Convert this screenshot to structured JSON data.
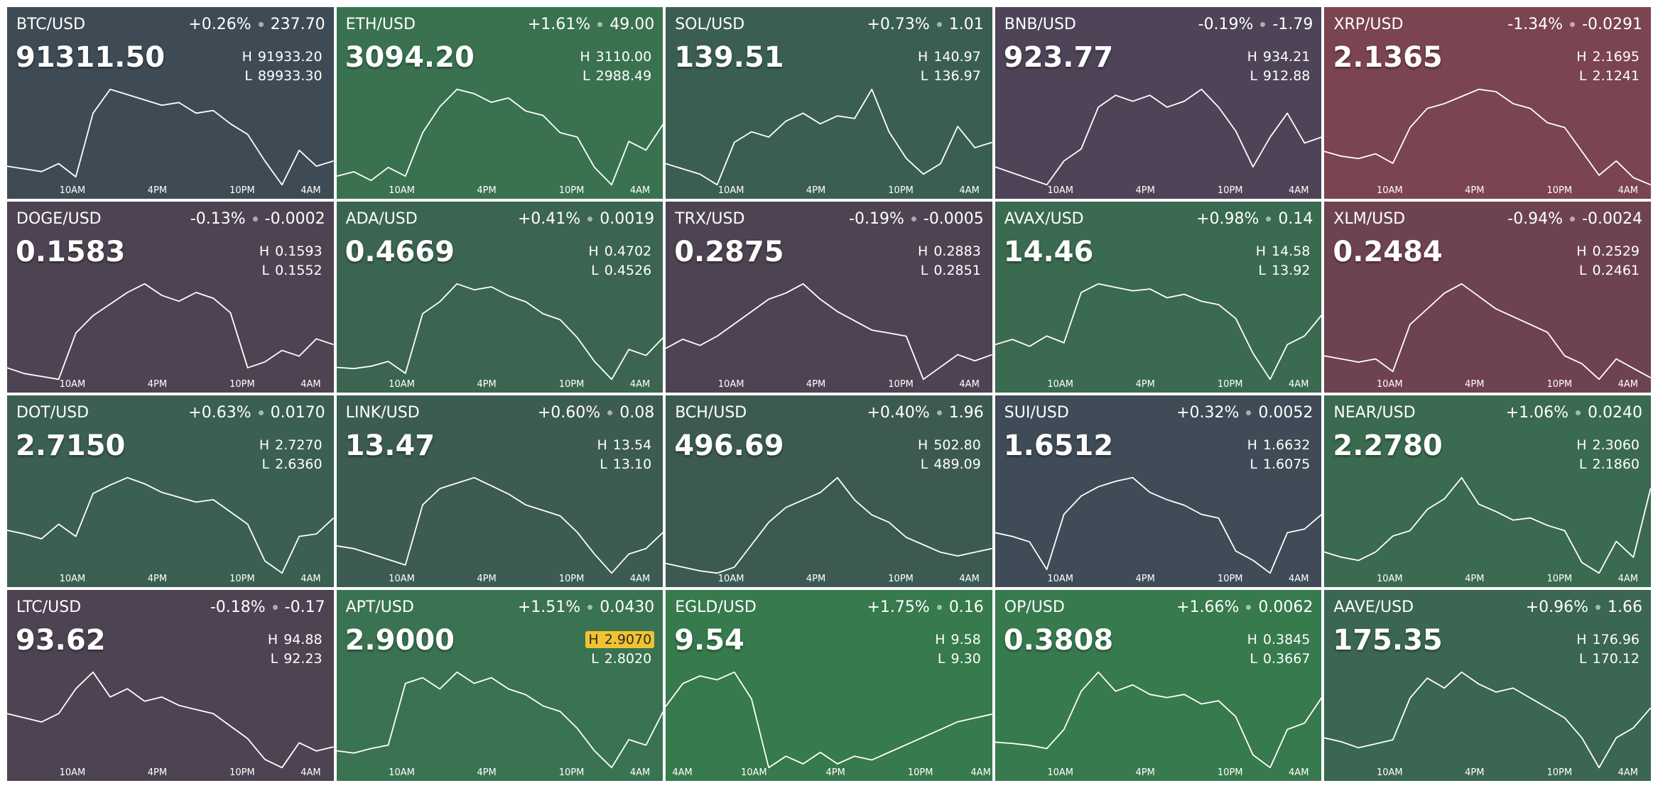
{
  "labels": {
    "high": "H",
    "low": "L"
  },
  "tiles": [
    {
      "pair": "BTC/USD",
      "change_pct": "+0.26%",
      "change": "237.70",
      "price": "91311.50",
      "high": "91933.20",
      "low": "89933.30",
      "color": "#3e4b55",
      "time_labels": [
        "10AM",
        "4PM",
        "10PM",
        "4AM"
      ],
      "spark": [
        90300,
        90250,
        90200,
        90350,
        90100,
        91300,
        91750,
        91650,
        91550,
        91450,
        91500,
        91300,
        91350,
        91100,
        90900,
        90400,
        89950,
        90600,
        90300,
        90400
      ]
    },
    {
      "pair": "ETH/USD",
      "change_pct": "+1.61%",
      "change": "49.00",
      "price": "3094.20",
      "high": "3110.00",
      "low": "2988.49",
      "color": "#3a7250",
      "time_labels": [
        "10AM",
        "4PM",
        "10PM",
        "4AM"
      ],
      "spark": [
        3000,
        3005,
        2995,
        3010,
        3000,
        3050,
        3080,
        3100,
        3095,
        3085,
        3090,
        3075,
        3070,
        3050,
        3045,
        3010,
        2990,
        3040,
        3030,
        3060
      ]
    },
    {
      "pair": "SOL/USD",
      "change_pct": "+0.73%",
      "change": "1.01",
      "price": "139.51",
      "high": "140.97",
      "low": "136.97",
      "color": "#3b5e53",
      "time_labels": [
        "10AM",
        "4PM",
        "10PM",
        "4AM"
      ],
      "spark": [
        137.8,
        137.6,
        137.4,
        137.0,
        138.6,
        139.0,
        138.8,
        139.4,
        139.7,
        139.3,
        139.6,
        139.5,
        140.6,
        139.0,
        138.0,
        137.4,
        137.8,
        139.2,
        138.4,
        138.6
      ]
    },
    {
      "pair": "BNB/USD",
      "change_pct": "-0.19%",
      "change": "-1.79",
      "price": "923.77",
      "high": "934.21",
      "low": "912.88",
      "color": "#4e4357",
      "time_labels": [
        "10AM",
        "4PM",
        "10PM",
        "4AM"
      ],
      "spark": [
        916,
        915,
        914,
        913,
        917,
        919,
        926,
        928,
        927,
        928,
        926,
        927,
        929,
        926,
        922,
        916,
        921,
        925,
        920,
        921
      ]
    },
    {
      "pair": "XRP/USD",
      "change_pct": "-1.34%",
      "change": "-0.0291",
      "price": "2.1365",
      "high": "2.1695",
      "low": "2.1241",
      "color": "#7a4450",
      "time_labels": [
        "10AM",
        "4PM",
        "10PM",
        "4AM"
      ],
      "spark": [
        2.14,
        2.138,
        2.137,
        2.139,
        2.135,
        2.15,
        2.158,
        2.16,
        2.163,
        2.166,
        2.165,
        2.16,
        2.158,
        2.152,
        2.15,
        2.14,
        2.13,
        2.136,
        2.129,
        2.126
      ]
    },
    {
      "pair": "DOGE/USD",
      "change_pct": "-0.13%",
      "change": "-0.0002",
      "price": "0.1583",
      "high": "0.1593",
      "low": "0.1552",
      "color": "#4e4352",
      "time_labels": [
        "10AM",
        "4PM",
        "10PM",
        "4AM"
      ],
      "spark": [
        0.156,
        0.1558,
        0.1557,
        0.1556,
        0.1572,
        0.1578,
        0.1582,
        0.1586,
        0.1589,
        0.1585,
        0.1583,
        0.1586,
        0.1584,
        0.1579,
        0.156,
        0.1562,
        0.1566,
        0.1564,
        0.157,
        0.1568
      ]
    },
    {
      "pair": "ADA/USD",
      "change_pct": "+0.41%",
      "change": "0.0019",
      "price": "0.4669",
      "high": "0.4702",
      "low": "0.4526",
      "color": "#3b6551",
      "time_labels": [
        "10AM",
        "4PM",
        "10PM",
        "4AM"
      ],
      "spark": [
        0.455,
        0.4548,
        0.4552,
        0.456,
        0.454,
        0.464,
        0.466,
        0.469,
        0.468,
        0.4685,
        0.467,
        0.466,
        0.464,
        0.463,
        0.46,
        0.456,
        0.453,
        0.458,
        0.457,
        0.46
      ]
    },
    {
      "pair": "TRX/USD",
      "change_pct": "-0.19%",
      "change": "-0.0005",
      "price": "0.2875",
      "high": "0.2883",
      "low": "0.2851",
      "color": "#4e4352",
      "time_labels": [
        "10AM",
        "4PM",
        "10PM",
        "4AM"
      ],
      "spark": [
        0.2862,
        0.2865,
        0.2863,
        0.2866,
        0.287,
        0.2874,
        0.2878,
        0.288,
        0.2883,
        0.2878,
        0.2874,
        0.2871,
        0.2868,
        0.2867,
        0.2866,
        0.2852,
        0.2856,
        0.286,
        0.2858,
        0.286
      ]
    },
    {
      "pair": "AVAX/USD",
      "change_pct": "+0.98%",
      "change": "0.14",
      "price": "14.46",
      "high": "14.58",
      "low": "13.92",
      "color": "#3a6a4f",
      "time_labels": [
        "10AM",
        "4PM",
        "10PM",
        "4AM"
      ],
      "spark": [
        14.15,
        14.18,
        14.14,
        14.2,
        14.16,
        14.45,
        14.5,
        14.48,
        14.46,
        14.47,
        14.42,
        14.44,
        14.4,
        14.38,
        14.3,
        14.1,
        13.95,
        14.15,
        14.2,
        14.32
      ]
    },
    {
      "pair": "XLM/USD",
      "change_pct": "-0.94%",
      "change": "-0.0024",
      "price": "0.2484",
      "high": "0.2529",
      "low": "0.2461",
      "color": "#6e4350",
      "time_labels": [
        "10AM",
        "4PM",
        "10PM",
        "4AM"
      ],
      "spark": [
        0.248,
        0.2478,
        0.2476,
        0.2478,
        0.247,
        0.25,
        0.251,
        0.252,
        0.2526,
        0.2518,
        0.251,
        0.2505,
        0.25,
        0.2495,
        0.248,
        0.2475,
        0.2465,
        0.2478,
        0.2472,
        0.2466
      ]
    },
    {
      "pair": "DOT/USD",
      "change_pct": "+0.63%",
      "change": "0.0170",
      "price": "2.7150",
      "high": "2.7270",
      "low": "2.6360",
      "color": "#3b5f51",
      "time_labels": [
        "10AM",
        "4PM",
        "10PM",
        "4AM"
      ],
      "spark": [
        2.675,
        2.672,
        2.668,
        2.68,
        2.67,
        2.705,
        2.712,
        2.718,
        2.713,
        2.706,
        2.702,
        2.698,
        2.7,
        2.69,
        2.68,
        2.65,
        2.64,
        2.67,
        2.672,
        2.685
      ]
    },
    {
      "pair": "LINK/USD",
      "change_pct": "+0.60%",
      "change": "0.08",
      "price": "13.47",
      "high": "13.54",
      "low": "13.10",
      "color": "#3c5b52",
      "time_labels": [
        "10AM",
        "4PM",
        "10PM",
        "4AM"
      ],
      "spark": [
        13.25,
        13.24,
        13.22,
        13.2,
        13.18,
        13.4,
        13.46,
        13.48,
        13.5,
        13.47,
        13.44,
        13.4,
        13.38,
        13.36,
        13.3,
        13.22,
        13.15,
        13.22,
        13.24,
        13.3
      ]
    },
    {
      "pair": "BCH/USD",
      "change_pct": "+0.40%",
      "change": "1.96",
      "price": "496.69",
      "high": "502.80",
      "low": "489.09",
      "color": "#3c5a51",
      "time_labels": [
        "10AM",
        "4PM",
        "10PM",
        "4AM"
      ],
      "spark": [
        490.5,
        490.0,
        489.5,
        489.2,
        490.0,
        493,
        496,
        498,
        499,
        500,
        502,
        499,
        497,
        496,
        494,
        493,
        492,
        491.5,
        492,
        492.5
      ]
    },
    {
      "pair": "SUI/USD",
      "change_pct": "+0.32%",
      "change": "0.0052",
      "price": "1.6512",
      "high": "1.6632",
      "low": "1.6075",
      "color": "#3f4b56",
      "time_labels": [
        "10AM",
        "4PM",
        "10PM",
        "4AM"
      ],
      "spark": [
        1.63,
        1.628,
        1.625,
        1.61,
        1.64,
        1.65,
        1.655,
        1.658,
        1.66,
        1.652,
        1.648,
        1.645,
        1.64,
        1.638,
        1.62,
        1.615,
        1.608,
        1.63,
        1.632,
        1.64
      ]
    },
    {
      "pair": "NEAR/USD",
      "change_pct": "+1.06%",
      "change": "0.0240",
      "price": "2.2780",
      "high": "2.3060",
      "low": "2.1860",
      "color": "#3a6a4f",
      "time_labels": [
        "10AM",
        "4PM",
        "10PM",
        "4AM"
      ],
      "spark": [
        2.22,
        2.215,
        2.212,
        2.22,
        2.235,
        2.24,
        2.26,
        2.27,
        2.29,
        2.265,
        2.258,
        2.25,
        2.252,
        2.245,
        2.24,
        2.21,
        2.2,
        2.23,
        2.215,
        2.28
      ]
    },
    {
      "pair": "LTC/USD",
      "change_pct": "-0.18%",
      "change": "-0.17",
      "price": "93.62",
      "high": "94.88",
      "low": "92.23",
      "color": "#4e4352",
      "time_labels": [
        "10AM",
        "4PM",
        "10PM",
        "4AM"
      ],
      "spark": [
        93.6,
        93.5,
        93.4,
        93.6,
        94.2,
        94.6,
        94.0,
        94.2,
        93.9,
        94.0,
        93.8,
        93.7,
        93.6,
        93.3,
        93.0,
        92.5,
        92.3,
        92.9,
        92.7,
        92.8
      ]
    },
    {
      "pair": "APT/USD",
      "change_pct": "+1.51%",
      "change": "0.0430",
      "price": "2.9000",
      "high": "2.9070",
      "low": "2.8020",
      "color": "#3a7351",
      "highlight": "high",
      "time_labels": [
        "10AM",
        "4PM",
        "10PM",
        "4AM"
      ],
      "spark": [
        2.82,
        2.818,
        2.822,
        2.825,
        2.88,
        2.885,
        2.875,
        2.89,
        2.88,
        2.885,
        2.875,
        2.87,
        2.86,
        2.855,
        2.84,
        2.82,
        2.805,
        2.83,
        2.825,
        2.855
      ]
    },
    {
      "pair": "EGLD/USD",
      "change_pct": "+1.75%",
      "change": "0.16",
      "price": "9.54",
      "high": "9.58",
      "low": "9.30",
      "color": "#367a4d",
      "time_labels": [
        "4AM",
        "10AM",
        "4PM",
        "10PM",
        "4AM"
      ],
      "spark": [
        9.48,
        9.54,
        9.56,
        9.55,
        9.57,
        9.5,
        9.32,
        9.35,
        9.33,
        9.36,
        9.33,
        9.35,
        9.34,
        9.36,
        9.38,
        9.4,
        9.42,
        9.44,
        9.45,
        9.46
      ]
    },
    {
      "pair": "OP/USD",
      "change_pct": "+1.66%",
      "change": "0.0062",
      "price": "0.3808",
      "high": "0.3845",
      "low": "0.3667",
      "color": "#377a4e",
      "time_labels": [
        "10AM",
        "4PM",
        "10PM",
        "4AM"
      ],
      "spark": [
        0.372,
        0.3718,
        0.3715,
        0.371,
        0.374,
        0.38,
        0.383,
        0.38,
        0.381,
        0.3795,
        0.379,
        0.3795,
        0.378,
        0.3785,
        0.376,
        0.37,
        0.368,
        0.374,
        0.375,
        0.379
      ]
    },
    {
      "pair": "AAVE/USD",
      "change_pct": "+0.96%",
      "change": "1.66",
      "price": "175.35",
      "high": "176.96",
      "low": "170.12",
      "color": "#3b6651",
      "time_labels": [
        "10AM",
        "4PM",
        "10PM",
        "4AM"
      ],
      "spark": [
        172.5,
        172.3,
        172.0,
        172.2,
        172.4,
        174.5,
        175.5,
        175.0,
        175.8,
        175.2,
        174.8,
        175.0,
        174.5,
        174.0,
        173.5,
        172.5,
        171.0,
        172.5,
        173.0,
        174.0
      ]
    }
  ]
}
